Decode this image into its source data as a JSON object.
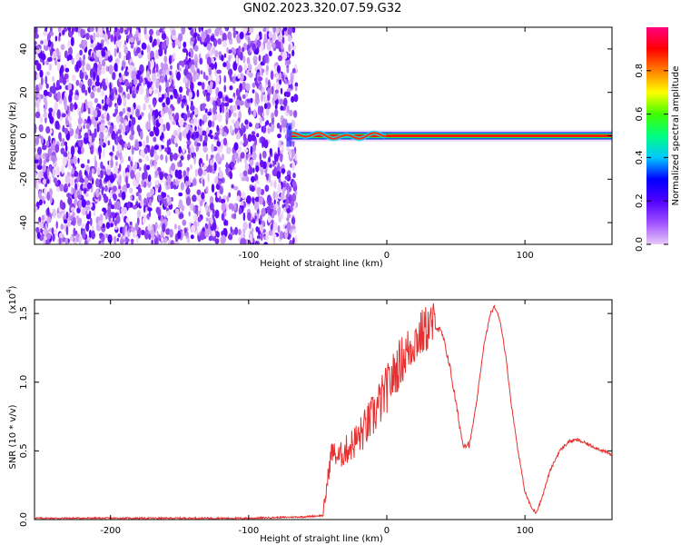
{
  "title": "GN02.2023.320.07.59.G32",
  "chart_data": [
    {
      "type": "heatmap",
      "title": "GN02.2023.320.07.59.G32",
      "xlabel": "Height of straight line (km)",
      "ylabel": "Frequency (Hz)",
      "xlim": [
        -255,
        163
      ],
      "ylim": [
        -50,
        50
      ],
      "x_ticks": [
        -200,
        -100,
        0,
        100
      ],
      "y_ticks": [
        -40,
        -20,
        0,
        20,
        40
      ],
      "noise_region_x": [
        -255,
        -68
      ],
      "signal_start_x": -70,
      "signal_line_frequency": 0,
      "colorbar": {
        "label": "Normalized spectral amplitude",
        "range": [
          0,
          1
        ],
        "ticks": [
          0.0,
          0.2,
          0.4,
          0.6,
          0.8
        ],
        "colors": [
          "#e8c8f8",
          "#a050ff",
          "#5000ff",
          "#0000ff",
          "#00c8ff",
          "#00ff80",
          "#40ff00",
          "#ffff00",
          "#ff8000",
          "#ff0000",
          "#ff0080"
        ]
      }
    },
    {
      "type": "line",
      "xlabel": "Height of straight line (km)",
      "ylabel": "SNR (10 * v/v)",
      "y_multiplier": "(x10",
      "y_multiplier_exp": "4",
      "y_multiplier_close": ")",
      "xlim": [
        -255,
        163
      ],
      "ylim": [
        0,
        1.6
      ],
      "x_ticks": [
        -200,
        -100,
        0,
        100
      ],
      "y_ticks": [
        0.0,
        0.5,
        1.0,
        1.5
      ],
      "color": "#e83030",
      "x": [
        -255,
        -200,
        -150,
        -100,
        -60,
        -46,
        -44,
        -40,
        -35,
        -30,
        -20,
        -10,
        0,
        10,
        20,
        30,
        35,
        40,
        45,
        50,
        55,
        60,
        65,
        70,
        75,
        78,
        82,
        86,
        90,
        95,
        100,
        105,
        108,
        112,
        118,
        125,
        132,
        138,
        145,
        152,
        163
      ],
      "values": [
        0.01,
        0.01,
        0.01,
        0.01,
        0.02,
        0.03,
        0.2,
        0.5,
        0.45,
        0.5,
        0.6,
        0.75,
        0.95,
        1.15,
        1.3,
        1.4,
        1.42,
        1.35,
        1.15,
        0.85,
        0.55,
        0.55,
        0.85,
        1.25,
        1.5,
        1.55,
        1.45,
        1.2,
        0.85,
        0.5,
        0.2,
        0.08,
        0.05,
        0.15,
        0.35,
        0.5,
        0.57,
        0.58,
        0.55,
        0.52,
        0.47
      ]
    }
  ]
}
